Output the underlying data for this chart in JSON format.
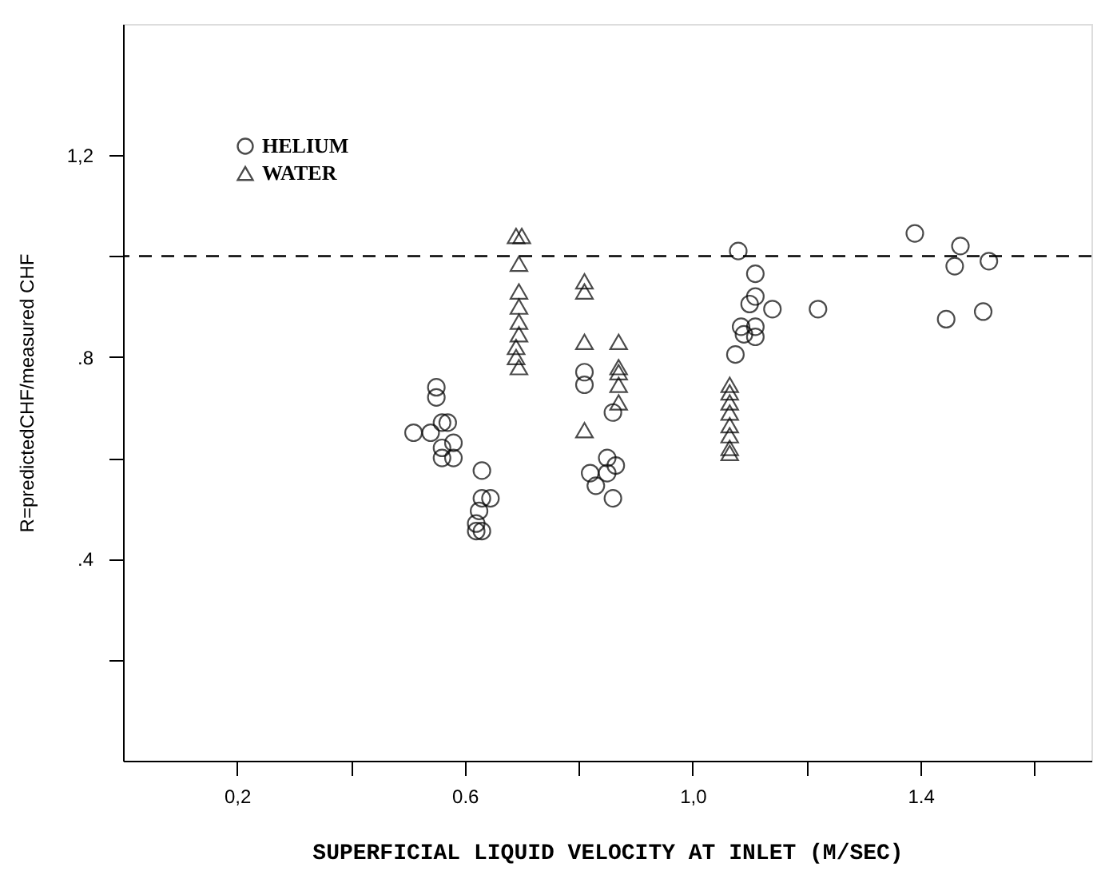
{
  "chart_data": {
    "type": "scatter",
    "xlabel": "SUPERFICIAL LIQUID VELOCITY AT INLET (M/SEC)",
    "ylabel": "R=predictedCHF/measured CHF",
    "xlim": [
      0,
      1.7
    ],
    "ylim": [
      0,
      1.46
    ],
    "xticks": [
      {
        "value": 0.2,
        "label": "0,2"
      },
      {
        "value": 0.4,
        "label": null
      },
      {
        "value": 0.6,
        "label": "0.6"
      },
      {
        "value": 0.8,
        "label": null
      },
      {
        "value": 1.0,
        "label": "1,0"
      },
      {
        "value": 1.2,
        "label": null
      },
      {
        "value": 1.4,
        "label": "1.4"
      },
      {
        "value": 1.6,
        "label": null
      }
    ],
    "yticks": [
      {
        "value": 0.2,
        "label": null
      },
      {
        "value": 0.4,
        "label": ".4"
      },
      {
        "value": 0.6,
        "label": null
      },
      {
        "value": 0.8,
        "label": ".8"
      },
      {
        "value": 1.0,
        "label": null
      },
      {
        "value": 1.2,
        "label": "1,2"
      }
    ],
    "grid": false,
    "legend": "top left",
    "ref_lines": [
      {
        "axis": "y",
        "value": 1.0,
        "line_style": "dashed"
      }
    ],
    "series": [
      {
        "name": "HELIUM",
        "color": "#000000",
        "marker": "circle",
        "x": [
          0.55,
          0.55,
          0.51,
          0.54,
          0.57,
          0.56,
          0.56,
          0.58,
          0.56,
          0.58,
          0.63,
          0.63,
          0.645,
          0.625,
          0.62,
          0.62,
          0.63,
          0.81,
          0.81,
          0.86,
          0.85,
          0.865,
          0.82,
          0.83,
          0.85,
          0.86,
          1.08,
          1.11,
          1.11,
          1.1,
          1.14,
          1.22,
          1.085,
          1.11,
          1.09,
          1.11,
          1.075,
          1.39,
          1.47,
          1.46,
          1.52,
          1.445,
          1.51
        ],
        "values": [
          0.74,
          0.72,
          0.65,
          0.65,
          0.67,
          0.67,
          0.62,
          0.63,
          0.6,
          0.6,
          0.575,
          0.52,
          0.52,
          0.495,
          0.47,
          0.455,
          0.455,
          0.77,
          0.745,
          0.69,
          0.6,
          0.585,
          0.57,
          0.545,
          0.57,
          0.52,
          1.01,
          0.965,
          0.92,
          0.905,
          0.895,
          0.895,
          0.86,
          0.86,
          0.845,
          0.84,
          0.805,
          1.045,
          1.02,
          0.98,
          0.99,
          0.875,
          0.89
        ]
      },
      {
        "name": "WATER",
        "color": "#000000",
        "marker": "triangle",
        "x": [
          0.69,
          0.7,
          0.695,
          0.695,
          0.695,
          0.695,
          0.695,
          0.69,
          0.69,
          0.695,
          0.81,
          0.81,
          0.81,
          0.81,
          0.87,
          0.87,
          0.87,
          0.87,
          0.87,
          1.065,
          1.065,
          1.065,
          1.065,
          1.065,
          1.065,
          1.065,
          1.065
        ],
        "values": [
          1.04,
          1.04,
          0.985,
          0.93,
          0.9,
          0.87,
          0.845,
          0.82,
          0.8,
          0.78,
          0.95,
          0.93,
          0.83,
          0.655,
          0.83,
          0.78,
          0.77,
          0.745,
          0.71,
          0.745,
          0.73,
          0.71,
          0.69,
          0.665,
          0.645,
          0.62,
          0.61
        ]
      }
    ]
  }
}
